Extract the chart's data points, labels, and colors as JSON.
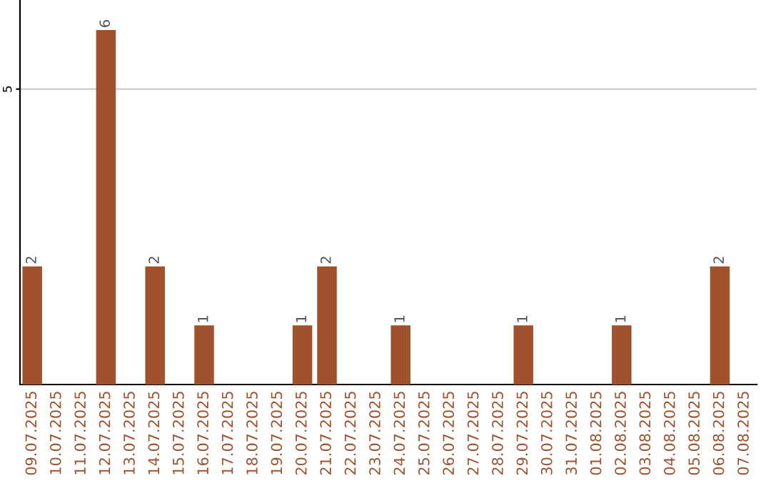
{
  "chart_data": {
    "type": "bar",
    "categories": [
      "09.07.2025",
      "10.07.2025",
      "11.07.2025",
      "12.07.2025",
      "13.07.2025",
      "14.07.2025",
      "15.07.2025",
      "16.07.2025",
      "17.07.2025",
      "18.07.2025",
      "19.07.2025",
      "20.07.2025",
      "21.07.2025",
      "22.07.2025",
      "23.07.2025",
      "24.07.2025",
      "25.07.2025",
      "26.07.2025",
      "27.07.2025",
      "28.07.2025",
      "29.07.2025",
      "30.07.2025",
      "31.07.2025",
      "01.08.2025",
      "02.08.2025",
      "03.08.2025",
      "04.08.2025",
      "05.08.2025",
      "06.08.2025",
      "07.08.2025"
    ],
    "values": [
      2,
      0,
      0,
      6,
      0,
      2,
      0,
      1,
      0,
      0,
      0,
      1,
      2,
      0,
      0,
      1,
      0,
      0,
      0,
      0,
      1,
      0,
      0,
      0,
      1,
      0,
      0,
      0,
      2,
      0
    ],
    "value_labels": [
      "2",
      null,
      null,
      "6",
      null,
      "2",
      null,
      "1",
      null,
      null,
      null,
      "1",
      "2",
      null,
      null,
      "1",
      null,
      null,
      null,
      null,
      "1",
      null,
      null,
      null,
      "1",
      null,
      null,
      null,
      "2",
      null
    ],
    "color": "#a0522d",
    "ylim": [
      0,
      6.5
    ],
    "yticks": [
      5
    ],
    "grid": "y"
  }
}
